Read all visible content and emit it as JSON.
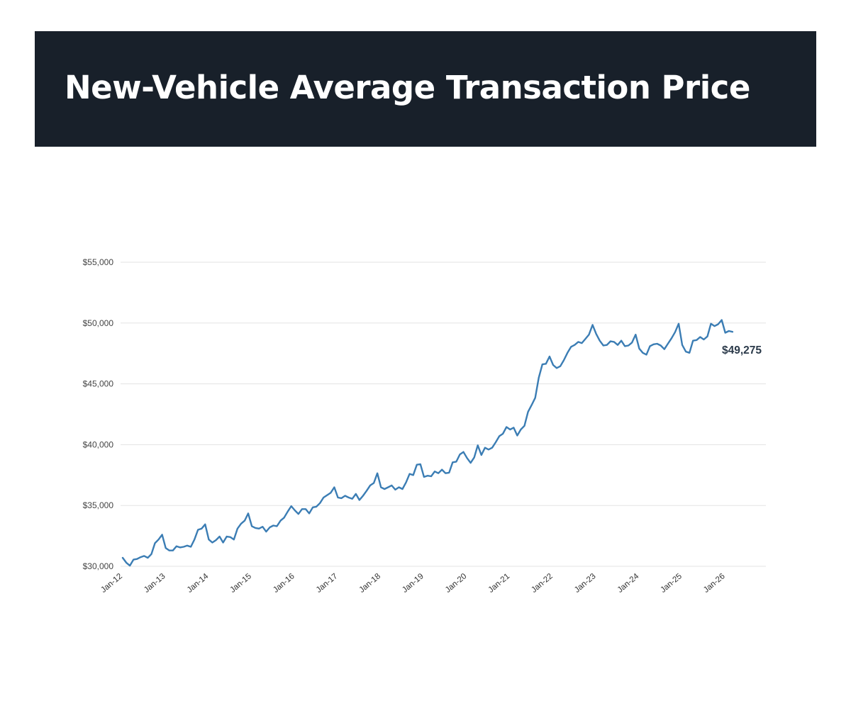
{
  "header": {
    "title": "New-Vehicle Average Transaction Price"
  },
  "colors": {
    "header_bg": "#18202a",
    "line": "#3b7db4",
    "grid": "#e3e3e3",
    "end_label": "#2b3a4a"
  },
  "chart_data": {
    "type": "line",
    "title": "New-Vehicle Average Transaction Price",
    "xlabel": "",
    "ylabel": "",
    "ylim": [
      30000,
      55000
    ],
    "y_ticks": [
      30000,
      35000,
      40000,
      45000,
      50000,
      55000
    ],
    "y_tick_labels": [
      "$30,000",
      "$35,000",
      "$40,000",
      "$45,000",
      "$50,000",
      "$55,000"
    ],
    "x_tick_labels": [
      "Jan-12",
      "Jan-13",
      "Jan-14",
      "Jan-15",
      "Jan-16",
      "Jan-17",
      "Jan-18",
      "Jan-19",
      "Jan-20",
      "Jan-21",
      "Jan-22",
      "Jan-23",
      "Jan-24",
      "Jan-25",
      "Jan-26"
    ],
    "grid": true,
    "end_label": "$49,275",
    "series": [
      {
        "name": "Average Transaction Price",
        "start": "Jan-12",
        "frequency": "monthly",
        "values": [
          30700,
          30300,
          30050,
          30550,
          30600,
          30750,
          30850,
          30700,
          31000,
          31900,
          32200,
          32600,
          31500,
          31300,
          31300,
          31650,
          31550,
          31600,
          31700,
          31600,
          32200,
          33000,
          33100,
          33450,
          32200,
          31950,
          32150,
          32450,
          31950,
          32450,
          32400,
          32200,
          33100,
          33500,
          33750,
          34350,
          33300,
          33150,
          33100,
          33250,
          32850,
          33200,
          33350,
          33300,
          33750,
          34000,
          34500,
          34950,
          34600,
          34300,
          34700,
          34700,
          34350,
          34850,
          34900,
          35200,
          35650,
          35850,
          36050,
          36500,
          35650,
          35600,
          35800,
          35650,
          35550,
          35950,
          35450,
          35800,
          36200,
          36650,
          36850,
          37650,
          36500,
          36350,
          36500,
          36650,
          36300,
          36500,
          36350,
          36900,
          37600,
          37500,
          38350,
          38400,
          37350,
          37450,
          37400,
          37800,
          37650,
          37950,
          37650,
          37700,
          38550,
          38600,
          39200,
          39400,
          38900,
          38500,
          38950,
          39950,
          39150,
          39750,
          39600,
          39750,
          40200,
          40700,
          40900,
          41450,
          41250,
          41400,
          40750,
          41250,
          41550,
          42700,
          43250,
          43850,
          45500,
          46600,
          46650,
          47250,
          46550,
          46300,
          46450,
          46950,
          47550,
          48050,
          48200,
          48450,
          48350,
          48700,
          49050,
          49850,
          49100,
          48550,
          48150,
          48200,
          48500,
          48450,
          48200,
          48550,
          48100,
          48150,
          48400,
          49050,
          47900,
          47550,
          47400,
          48100,
          48250,
          48300,
          48150,
          47850,
          48300,
          48750,
          49250,
          49950,
          48200,
          47650,
          47550,
          48550,
          48600,
          48850,
          48650,
          48900,
          49950,
          49750,
          49900,
          50250,
          49200,
          49350,
          49275
        ]
      }
    ]
  }
}
